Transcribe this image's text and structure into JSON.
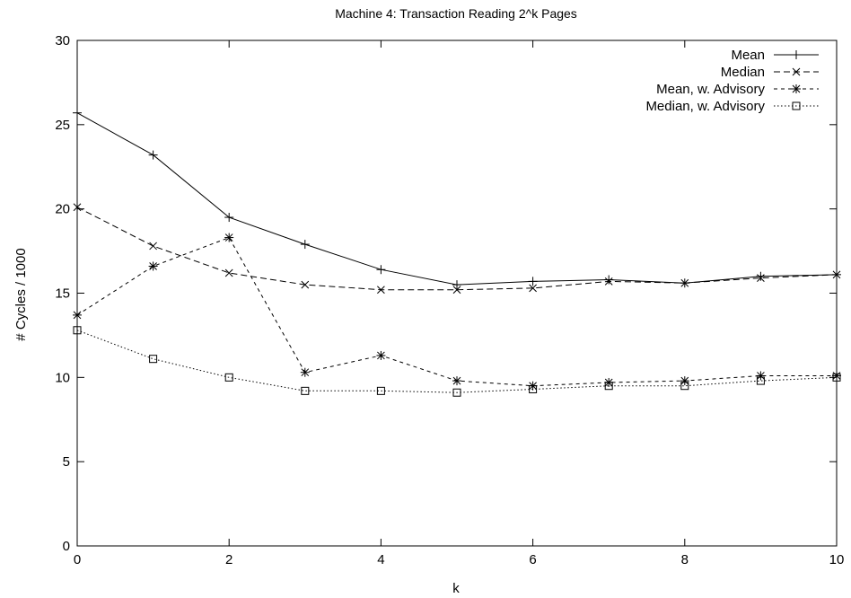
{
  "chart_data": {
    "type": "line",
    "title": "Machine 4: Transaction Reading 2^k Pages",
    "xlabel": "k",
    "ylabel": "# Cycles / 1000",
    "xlim": [
      0,
      10
    ],
    "ylim": [
      0,
      30
    ],
    "xticks": [
      0,
      2,
      4,
      6,
      8,
      10
    ],
    "yticks": [
      0,
      5,
      10,
      15,
      20,
      25,
      30
    ],
    "grid": false,
    "legend_position": "top-right",
    "x": [
      0,
      1,
      2,
      3,
      4,
      5,
      6,
      7,
      8,
      9,
      10
    ],
    "series": [
      {
        "name": "Mean",
        "marker": "plus",
        "dash": "solid",
        "values": [
          25.7,
          23.2,
          19.5,
          17.9,
          16.4,
          15.5,
          15.7,
          15.8,
          15.6,
          16.0,
          16.1
        ]
      },
      {
        "name": "Median",
        "marker": "x",
        "dash": "dashed",
        "values": [
          20.1,
          17.8,
          16.2,
          15.5,
          15.2,
          15.2,
          15.3,
          15.7,
          15.6,
          15.9,
          16.1
        ]
      },
      {
        "name": "Mean, w. Advisory",
        "marker": "star",
        "dash": "short-dashed",
        "values": [
          13.7,
          16.6,
          18.3,
          10.3,
          11.3,
          9.8,
          9.5,
          9.7,
          9.8,
          10.1,
          10.1
        ]
      },
      {
        "name": "Median, w. Advisory",
        "marker": "square",
        "dash": "dotted",
        "values": [
          12.8,
          11.1,
          10.0,
          9.2,
          9.2,
          9.1,
          9.3,
          9.5,
          9.5,
          9.8,
          10.0
        ]
      }
    ]
  }
}
